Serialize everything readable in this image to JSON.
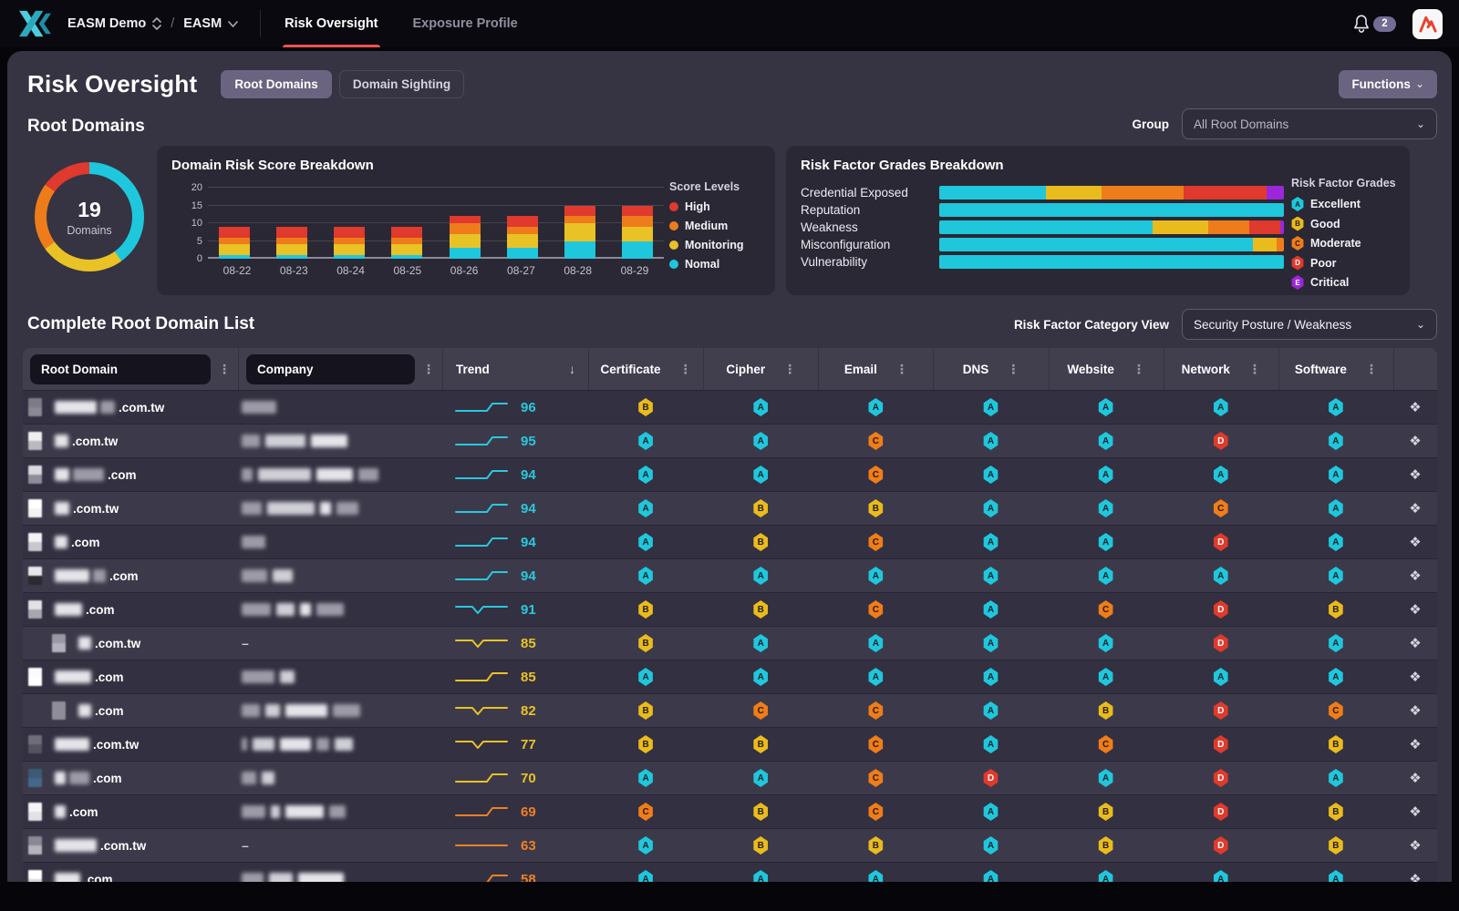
{
  "icons": {
    "kebab": "⋮",
    "sort_down": "↓",
    "chevron_down": "⌄",
    "action": "❖",
    "dash": "–",
    "slash": "/"
  },
  "topnav": {
    "workspace": "EASM Demo",
    "project": "EASM",
    "tabs": [
      {
        "label": "Risk Oversight",
        "active": true
      },
      {
        "label": "Exposure Profile",
        "active": false
      }
    ],
    "notification_count": "2"
  },
  "header": {
    "title": "Risk Oversight",
    "view_buttons": [
      {
        "label": "Root Domains",
        "active": true
      },
      {
        "label": "Domain Sighting",
        "active": false
      }
    ],
    "functions_label": "Functions"
  },
  "sections": {
    "root_domains": {
      "title": "Root Domains",
      "group_label": "Group",
      "group_value": "All Root Domains"
    }
  },
  "chart_data": [
    {
      "type": "donut",
      "center_value": "19",
      "center_label": "Domains",
      "slices": [
        {
          "label": "Nomal",
          "color": "#1fc7dc",
          "pct": 40
        },
        {
          "label": "Monitoring",
          "color": "#e9c226",
          "pct": 25
        },
        {
          "label": "Medium",
          "color": "#ee7c1b",
          "pct": 20
        },
        {
          "label": "High",
          "color": "#e0392d",
          "pct": 15
        }
      ]
    },
    {
      "type": "bar",
      "stacked": true,
      "title": "Domain Risk Score Breakdown",
      "categories": [
        "08-22",
        "08-23",
        "08-24",
        "08-25",
        "08-26",
        "08-27",
        "08-28",
        "08-29"
      ],
      "series": [
        {
          "name": "Nomal",
          "color": "#1fc7dc",
          "values": [
            1,
            1,
            1,
            1,
            3,
            3,
            5,
            5
          ]
        },
        {
          "name": "Monitoring",
          "color": "#e9c226",
          "values": [
            3,
            3,
            3,
            3,
            4,
            4,
            5,
            4
          ]
        },
        {
          "name": "Medium",
          "color": "#ee7c1b",
          "values": [
            2,
            2,
            2,
            2,
            3,
            2,
            2,
            3
          ]
        },
        {
          "name": "High",
          "color": "#e0392d",
          "values": [
            3,
            3,
            3,
            3,
            2,
            3,
            3,
            3
          ]
        }
      ],
      "legend_title": "Score Levels",
      "legend_order": [
        "High",
        "Medium",
        "Monitoring",
        "Nomal"
      ],
      "legend_position": "right",
      "ylim": [
        0,
        20
      ],
      "yticks": [
        0,
        5,
        10,
        15,
        20
      ],
      "grid": true
    },
    {
      "type": "bar-horizontal",
      "stacked": true,
      "title": "Risk Factor Grades Breakdown",
      "categories": [
        "Credential Exposed",
        "Reputation",
        "Weakness",
        "Misconfiguration",
        "Vulnerability"
      ],
      "series": [
        {
          "name": "Excellent",
          "grade": "A",
          "color": "#1fc7dc",
          "values": [
            31,
            100,
            62,
            91,
            100
          ]
        },
        {
          "name": "Good",
          "grade": "B",
          "color": "#e9bb1d",
          "values": [
            16,
            0,
            16,
            7,
            0
          ]
        },
        {
          "name": "Moderate",
          "grade": "C",
          "color": "#ee7c1b",
          "values": [
            24,
            0,
            12,
            2,
            0
          ]
        },
        {
          "name": "Poor",
          "grade": "D",
          "color": "#e0392d",
          "values": [
            24,
            0,
            9,
            0,
            0
          ]
        },
        {
          "name": "Critical",
          "grade": "E",
          "color": "#9b27d8",
          "values": [
            5,
            0,
            1,
            0,
            0
          ]
        }
      ],
      "legend_title": "Risk Factor Grades",
      "xlim": [
        0,
        100
      ]
    }
  ],
  "table": {
    "title": "Complete Root Domain List",
    "category_view_label": "Risk Factor Category View",
    "category_view_value": "Security Posture / Weakness",
    "columns": [
      "Root Domain",
      "Company",
      "Trend",
      "Certificate",
      "Cipher",
      "Email",
      "DNS",
      "Website",
      "Network",
      "Software"
    ],
    "grade_colors": {
      "A": {
        "bg": "#1fc7dc",
        "fg": "#172228"
      },
      "B": {
        "bg": "#e9bb1d",
        "fg": "#262008"
      },
      "C": {
        "bg": "#ef7d18",
        "fg": "#2a1605"
      },
      "D": {
        "bg": "#e13a2b",
        "fg": "#ffffff"
      },
      "E": {
        "bg": "#9b27d8",
        "fg": "#ffffff"
      }
    },
    "trend_colors": {
      "cyan": "#29c8dd",
      "yellow": "#e9c226",
      "orange": "#ef8024"
    },
    "rows": [
      {
        "suffix": ".com.tw",
        "favicon": [
          "#7d7b86",
          "#8a8894"
        ],
        "domain_blur": [
          46,
          16
        ],
        "company_blur": [
          38
        ],
        "company_dash": false,
        "trend": {
          "score": "96",
          "shape": "step",
          "color": "cyan"
        },
        "grades": [
          "B",
          "A",
          "A",
          "A",
          "A",
          "A",
          "A"
        ]
      },
      {
        "suffix": ".com.tw",
        "favicon": [
          "#efefef",
          "#b9b9bf"
        ],
        "domain_blur": [
          15
        ],
        "company_blur": [
          20,
          44,
          40
        ],
        "company_dash": false,
        "trend": {
          "score": "95",
          "shape": "step",
          "color": "cyan"
        },
        "grades": [
          "A",
          "A",
          "C",
          "A",
          "A",
          "D",
          "A"
        ]
      },
      {
        "suffix": ".com",
        "favicon": [
          "#d9d9de",
          "#8f8d99"
        ],
        "domain_blur": [
          16,
          34
        ],
        "company_blur": [
          12,
          58,
          40,
          22
        ],
        "company_dash": false,
        "trend": {
          "score": "94",
          "shape": "step",
          "color": "cyan"
        },
        "grades": [
          "A",
          "A",
          "C",
          "A",
          "A",
          "A",
          "A"
        ]
      },
      {
        "suffix": ".com.tw",
        "favicon": [
          "#ffffff",
          "#f2f2f2"
        ],
        "domain_blur": [
          16
        ],
        "company_blur": [
          22,
          52,
          12,
          24
        ],
        "company_dash": false,
        "trend": {
          "score": "94",
          "shape": "step",
          "color": "cyan"
        },
        "grades": [
          "A",
          "B",
          "B",
          "A",
          "A",
          "C",
          "A"
        ]
      },
      {
        "suffix": ".com",
        "favicon": [
          "#f4f4f6",
          "#c7c7cd"
        ],
        "domain_blur": [
          14
        ],
        "company_blur": [
          26
        ],
        "company_dash": false,
        "trend": {
          "score": "94",
          "shape": "step",
          "color": "cyan"
        },
        "grades": [
          "A",
          "B",
          "C",
          "A",
          "A",
          "D",
          "A"
        ]
      },
      {
        "suffix": ".com",
        "favicon": [
          "#e8e8ec",
          "#2a2a30"
        ],
        "domain_blur": [
          38,
          14
        ],
        "company_blur": [
          28,
          22
        ],
        "company_dash": false,
        "trend": {
          "score": "94",
          "shape": "step",
          "color": "cyan"
        },
        "grades": [
          "A",
          "A",
          "A",
          "A",
          "A",
          "A",
          "A"
        ]
      },
      {
        "suffix": ".com",
        "favicon": [
          "#e2e2e6",
          "#a7a7af"
        ],
        "domain_blur": [
          30
        ],
        "company_blur": [
          32,
          20,
          12,
          30
        ],
        "company_dash": false,
        "trend": {
          "score": "91",
          "shape": "dip",
          "color": "cyan"
        },
        "grades": [
          "B",
          "B",
          "C",
          "A",
          "C",
          "D",
          "B"
        ]
      },
      {
        "suffix": ".com.tw",
        "favicon": [
          "#9a98a4",
          "#b3b1bc"
        ],
        "domain_blur": [
          14
        ],
        "company_blur": [],
        "company_dash": true,
        "trend": {
          "score": "85",
          "shape": "dip",
          "color": "yellow"
        },
        "grades": [
          "B",
          "A",
          "A",
          "A",
          "A",
          "D",
          "A"
        ],
        "indent": true
      },
      {
        "suffix": ".com",
        "favicon": [
          "#fbfbfd",
          "#ffffff"
        ],
        "domain_blur": [
          40
        ],
        "company_blur": [
          36,
          16
        ],
        "company_dash": false,
        "trend": {
          "score": "85",
          "shape": "step",
          "color": "yellow"
        },
        "grades": [
          "A",
          "A",
          "A",
          "A",
          "A",
          "A",
          "A"
        ]
      },
      {
        "suffix": ".com",
        "favicon": [
          "#8f8d99",
          "#8f8d99"
        ],
        "domain_blur": [
          14
        ],
        "company_blur": [
          20,
          16,
          46,
          30
        ],
        "company_dash": false,
        "trend": {
          "score": "82",
          "shape": "dip",
          "color": "yellow"
        },
        "grades": [
          "B",
          "C",
          "C",
          "A",
          "B",
          "D",
          "C"
        ],
        "indent": true
      },
      {
        "suffix": ".com.tw",
        "favicon": [
          "#6f6d79",
          "#55535f"
        ],
        "domain_blur": [
          38
        ],
        "company_blur": [
          6,
          24,
          34,
          14,
          20
        ],
        "company_dash": false,
        "trend": {
          "score": "77",
          "shape": "dip",
          "color": "yellow"
        },
        "grades": [
          "B",
          "B",
          "C",
          "A",
          "C",
          "D",
          "B"
        ]
      },
      {
        "suffix": ".com",
        "favicon": [
          "#3c5a74",
          "#46678a"
        ],
        "domain_blur": [
          12,
          22
        ],
        "company_blur": [
          16,
          14
        ],
        "company_dash": false,
        "trend": {
          "score": "70",
          "shape": "step",
          "color": "yellow"
        },
        "grades": [
          "A",
          "A",
          "C",
          "D",
          "A",
          "D",
          "A"
        ]
      },
      {
        "suffix": ".com",
        "favicon": [
          "#f6f6f8",
          "#e2e2e6"
        ],
        "domain_blur": [
          12
        ],
        "company_blur": [
          26,
          10,
          42,
          18
        ],
        "company_dash": false,
        "trend": {
          "score": "69",
          "shape": "step",
          "color": "orange"
        },
        "grades": [
          "C",
          "B",
          "C",
          "A",
          "B",
          "D",
          "B"
        ]
      },
      {
        "suffix": ".com.tw",
        "favicon": [
          "#8a8894",
          "#b5b3bd"
        ],
        "domain_blur": [
          46
        ],
        "company_blur": [],
        "company_dash": true,
        "trend": {
          "score": "63",
          "shape": "flat",
          "color": "orange"
        },
        "grades": [
          "A",
          "B",
          "B",
          "A",
          "B",
          "D",
          "B"
        ]
      },
      {
        "suffix": ".com",
        "favicon": [
          "#ffffff",
          "#d5d5da"
        ],
        "domain_blur": [
          28
        ],
        "company_blur": [
          24,
          26,
          50
        ],
        "company_dash": false,
        "trend": {
          "score": "58",
          "shape": "step",
          "color": "orange"
        },
        "grades": [
          "A",
          "A",
          "A",
          "A",
          "A",
          "A",
          "A"
        ]
      }
    ]
  }
}
